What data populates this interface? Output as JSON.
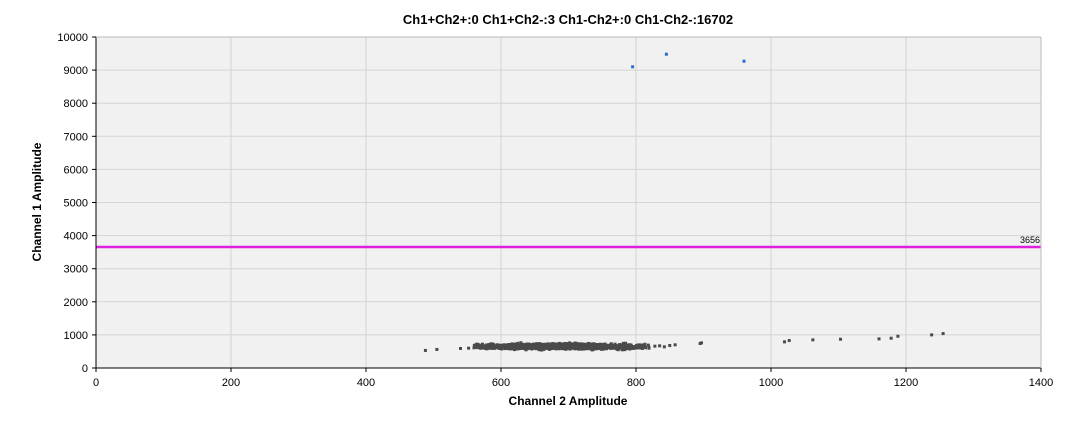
{
  "chart_data": {
    "type": "scatter",
    "title": "Ch1+Ch2+:0  Ch1+Ch2-:3  Ch1-Ch2+:0  Ch1-Ch2-:16702",
    "xlabel": "Channel 2 Amplitude",
    "ylabel": "Channel 1 Amplitude",
    "xlim": [
      0,
      1400
    ],
    "ylim": [
      0,
      10000
    ],
    "xticks": [
      0,
      200,
      400,
      600,
      800,
      1000,
      1200,
      1400
    ],
    "yticks": [
      0,
      1000,
      2000,
      3000,
      4000,
      5000,
      6000,
      7000,
      8000,
      9000,
      10000
    ],
    "grid": true,
    "threshold": {
      "axis": "y",
      "value": 3656,
      "label": "3656",
      "color": "#e020e0"
    },
    "colors": {
      "positive": "#1f6fd6",
      "negative": "#4a4a4a"
    },
    "series": [
      {
        "cluster": "Ch1+Ch2-",
        "color": "#1f6fd6",
        "points": [
          [
            795,
            9100
          ],
          [
            845,
            9480
          ],
          [
            960,
            9270
          ]
        ]
      },
      {
        "cluster": "Ch1-Ch2-",
        "color": "#4a4a4a",
        "band": {
          "x_from": 560,
          "x_to": 820,
          "y_center": 650,
          "y_spread": 70,
          "count": 1400,
          "peak_x": 680
        },
        "points": [
          [
            488,
            530
          ],
          [
            505,
            560
          ],
          [
            540,
            590
          ],
          [
            552,
            600
          ],
          [
            560,
            610
          ],
          [
            828,
            660
          ],
          [
            835,
            670
          ],
          [
            842,
            640
          ],
          [
            850,
            680
          ],
          [
            858,
            700
          ],
          [
            895,
            740
          ],
          [
            897,
            760
          ],
          [
            1020,
            790
          ],
          [
            1027,
            830
          ],
          [
            1062,
            850
          ],
          [
            1103,
            870
          ],
          [
            1160,
            880
          ],
          [
            1178,
            900
          ],
          [
            1188,
            960
          ],
          [
            1238,
            1000
          ],
          [
            1255,
            1040
          ]
        ]
      }
    ]
  }
}
